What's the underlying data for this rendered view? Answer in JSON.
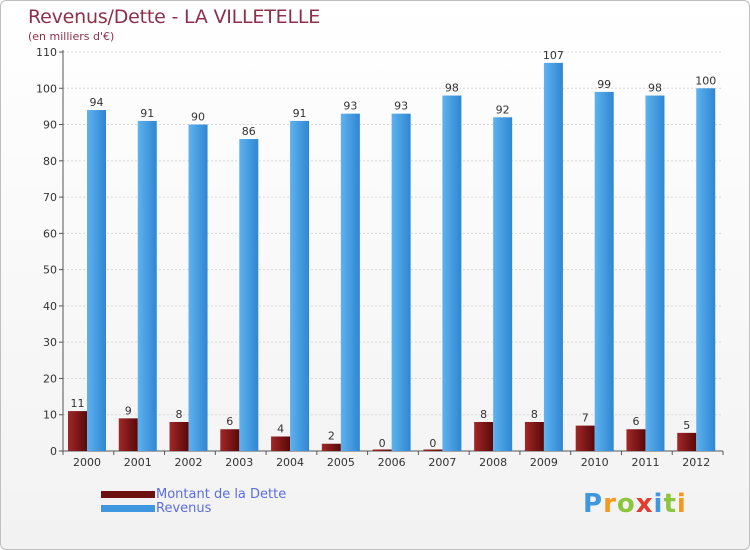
{
  "header": {
    "title": "Revenus/Dette - LA VILLETELLE",
    "subtitle": "(en milliers d'€)"
  },
  "chart_data": {
    "type": "bar",
    "categories": [
      "2000",
      "2001",
      "2002",
      "2003",
      "2004",
      "2005",
      "2006",
      "2007",
      "2008",
      "2009",
      "2010",
      "2011",
      "2012"
    ],
    "series": [
      {
        "name": "Montant de la Dette",
        "values": [
          11,
          9,
          8,
          6,
          4,
          2,
          0,
          0,
          8,
          8,
          7,
          6,
          5
        ],
        "color": "#7a1515"
      },
      {
        "name": "Revenus",
        "values": [
          94,
          91,
          90,
          86,
          91,
          93,
          93,
          98,
          92,
          107,
          99,
          98,
          100
        ],
        "color": "#4aa3e6"
      }
    ],
    "yticks": [
      0,
      10,
      20,
      30,
      40,
      50,
      60,
      70,
      80,
      90,
      100,
      110
    ],
    "ylim": [
      0,
      110
    ],
    "grid": true,
    "xlabel": "",
    "ylabel": "",
    "legend_position": "bottom-left"
  },
  "legend": {
    "items": [
      {
        "label": "Montant de la Dette",
        "color": "#6e1010"
      },
      {
        "label": "Revenus",
        "color": "#3f97df"
      }
    ]
  },
  "logo": {
    "letters": [
      "P",
      "r",
      "o",
      "x",
      "i",
      "t",
      "i"
    ],
    "colors": [
      "#3f97df",
      "#f39a1e",
      "#8cc63f",
      "#e23c2f",
      "#3f97df",
      "#8cc63f",
      "#f39a1e"
    ]
  }
}
